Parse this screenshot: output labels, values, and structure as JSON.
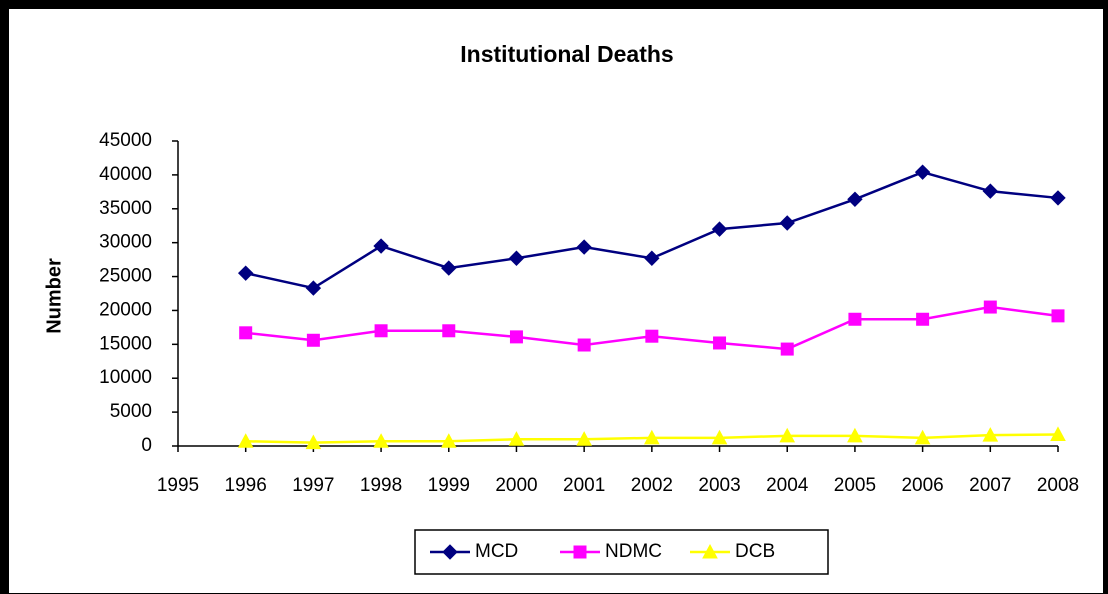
{
  "chart_data": {
    "type": "line",
    "title": "Institutional Deaths",
    "y_label": "Number",
    "x": [
      1996,
      1997,
      1998,
      1999,
      2000,
      2001,
      2002,
      2003,
      2004,
      2005,
      2006,
      2007,
      2008
    ],
    "xlim": [
      1995,
      2008
    ],
    "xticks": [
      1995,
      1996,
      1997,
      1998,
      1999,
      2000,
      2001,
      2002,
      2003,
      2004,
      2005,
      2006,
      2007,
      2008
    ],
    "ylim": [
      0,
      45000
    ],
    "yticks": [
      0,
      5000,
      10000,
      15000,
      20000,
      25000,
      30000,
      35000,
      40000,
      45000
    ],
    "legend": "bottom",
    "series": [
      {
        "name": "MCD",
        "color": "#000080",
        "marker": "diamond",
        "values": [
          25500,
          23300,
          29500,
          26250,
          27700,
          29350,
          27700,
          32000,
          32900,
          36400,
          40400,
          37600,
          36600
        ]
      },
      {
        "name": "NDMC",
        "color": "#ff00ff",
        "marker": "square",
        "values": [
          16700,
          15600,
          17000,
          17000,
          16100,
          14900,
          16200,
          15200,
          14300,
          18700,
          18700,
          20500,
          19200
        ]
      },
      {
        "name": "DCB",
        "color": "#ffff00",
        "marker": "triangle",
        "values": [
          700,
          500,
          700,
          700,
          1000,
          1000,
          1200,
          1200,
          1500,
          1500,
          1200,
          1600,
          1700
        ]
      }
    ]
  }
}
